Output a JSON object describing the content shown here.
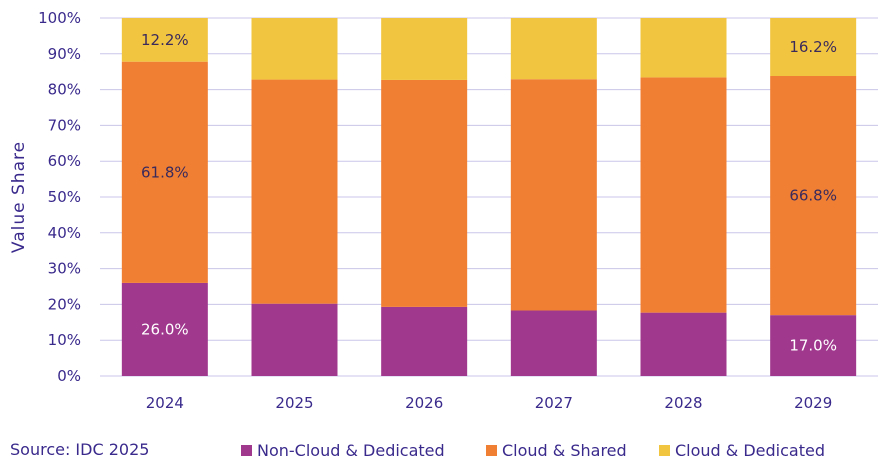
{
  "chart_data": {
    "type": "bar",
    "stacked": true,
    "ylabel": "Value  Share",
    "ylim": [
      0,
      100
    ],
    "y_ticks": [
      "0%",
      "10%",
      "20%",
      "30%",
      "40%",
      "50%",
      "60%",
      "70%",
      "80%",
      "90%",
      "100%"
    ],
    "grid": true,
    "legend_position": "bottom",
    "categories": [
      "2024",
      "2025",
      "2026",
      "2027",
      "2028",
      "2029"
    ],
    "series": [
      {
        "name": "Non-Cloud & Dedicated",
        "color": "#a0388e",
        "values": [
          26.0,
          20.2,
          19.3,
          18.3,
          17.7,
          17.0
        ],
        "labels": [
          "26.0%",
          "",
          "",
          "",
          "",
          "17.0%"
        ],
        "label_color": "#ffffff"
      },
      {
        "name": "Cloud & Shared",
        "color": "#f07f34",
        "values": [
          61.8,
          62.6,
          63.4,
          64.6,
          65.7,
          66.8
        ],
        "labels": [
          "61.8%",
          "",
          "",
          "",
          "",
          "66.8%"
        ],
        "label_color": "#3a2a5c"
      },
      {
        "name": "Cloud & Dedicated",
        "color": "#f2c540",
        "values": [
          12.2,
          17.2,
          17.3,
          17.1,
          16.6,
          16.2
        ],
        "labels": [
          "12.2%",
          "",
          "",
          "",
          "",
          "16.2%"
        ],
        "label_color": "#3a2a5c"
      }
    ]
  },
  "footer": {
    "source": "Source: IDC 2025"
  },
  "legend": [
    {
      "label": "Non-Cloud & Dedicated",
      "color": "#a0388e"
    },
    {
      "label": "Cloud & Shared",
      "color": "#f07f34"
    },
    {
      "label": "Cloud & Dedicated",
      "color": "#f2c540"
    }
  ],
  "colors": {
    "text": "#3a2a8c",
    "grid": "#c9c6e8"
  }
}
